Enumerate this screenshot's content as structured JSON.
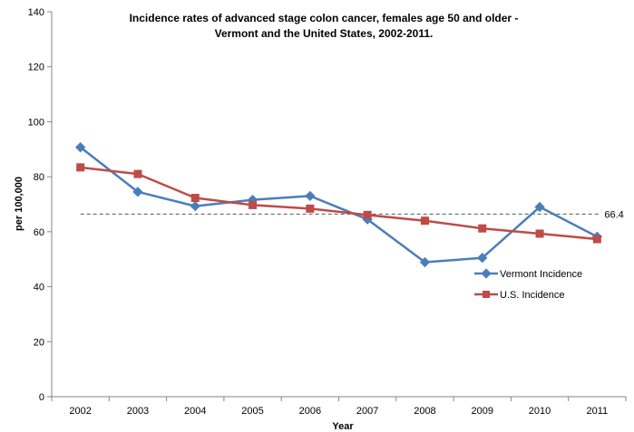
{
  "chart_data": {
    "type": "line",
    "title_line1": "Incidence rates of advanced stage colon cancer, females age 50 and older -",
    "title_line2": "Vermont and the United States, 2002-2011.",
    "xlabel": "Year",
    "ylabel": "per 100,000",
    "categories": [
      "2002",
      "2003",
      "2004",
      "2005",
      "2006",
      "2007",
      "2008",
      "2009",
      "2010",
      "2011"
    ],
    "ylim": [
      0,
      140
    ],
    "yticks": [
      "0",
      "20",
      "40",
      "60",
      "80",
      "100",
      "120",
      "140"
    ],
    "grid": false,
    "legend_position": "lower-right",
    "series": [
      {
        "name": "Vermont Incidence",
        "color": "#4a7ebb",
        "marker": "diamond",
        "values": [
          90.7,
          74.5,
          69.3,
          71.6,
          73.0,
          64.5,
          48.9,
          50.5,
          69.0,
          58.2
        ]
      },
      {
        "name": "U.S. Incidence",
        "color": "#be4b48",
        "marker": "square",
        "values": [
          83.4,
          81.0,
          72.3,
          69.7,
          68.4,
          66.1,
          64.0,
          61.2,
          59.3,
          57.3
        ]
      }
    ],
    "reference_line": {
      "value": 66.4,
      "label": "66.4",
      "style": "dashed",
      "color": "#555555"
    }
  }
}
